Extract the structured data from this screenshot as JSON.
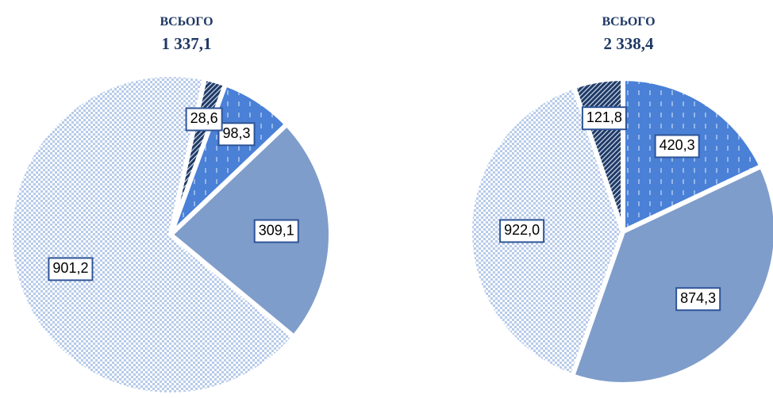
{
  "chart_data": [
    {
      "type": "pie",
      "title": "ВСЬОГО",
      "total": {
        "value": 1337.1,
        "label": "1 337,1"
      },
      "values": [
        98.3,
        309.1,
        901.2,
        28.6
      ],
      "value_labels": [
        "98,3",
        "309,1",
        "901,2",
        "28,6"
      ],
      "colors": [
        "#4a80d6",
        "#7f9dcb",
        "#b7cbea",
        "#1f3a66"
      ]
    },
    {
      "type": "pie",
      "title": "ВСЬОГО",
      "total": {
        "value": 2338.4,
        "label": "2 338,4"
      },
      "values": [
        420.3,
        874.3,
        922.0,
        121.8
      ],
      "value_labels": [
        "420,3",
        "874,3",
        "922,0",
        "121,8"
      ],
      "colors": [
        "#4a80d6",
        "#7f9dcb",
        "#b7cbea",
        "#1f3a66"
      ]
    }
  ]
}
